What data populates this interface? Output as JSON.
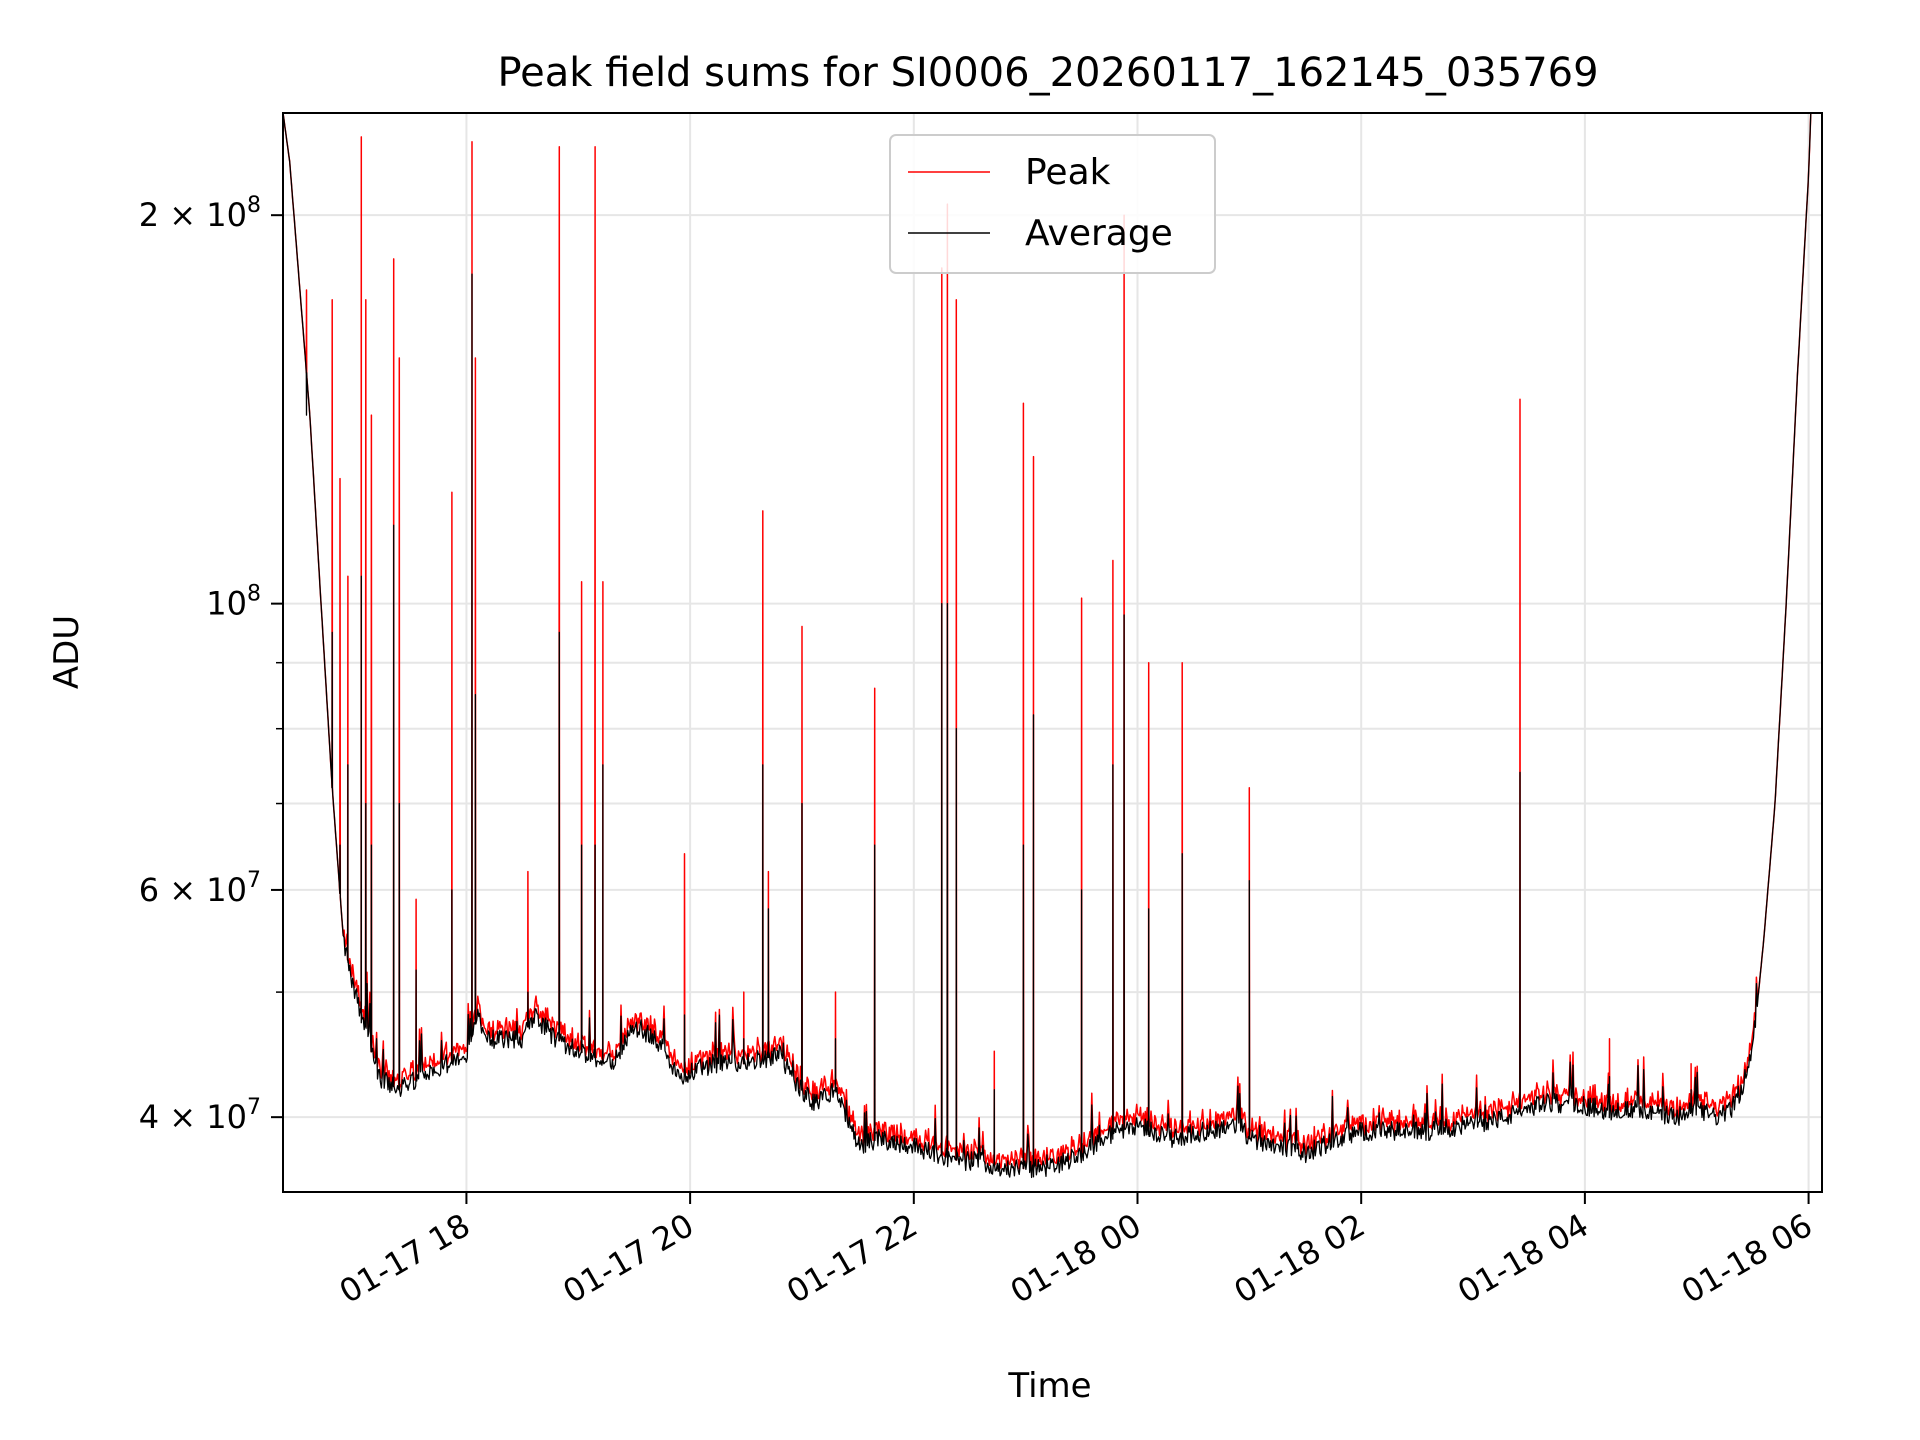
{
  "chart_data": {
    "type": "line",
    "title": "Peak field sums for SI0006_20260117_162145_035769",
    "xlabel": "Time",
    "ylabel": "ADU",
    "yscale": "log",
    "ylim": [
      35000000,
      240000000
    ],
    "xlim": [
      16.36,
      30.12
    ],
    "x_unit": "hours since 2026-01-17 00:00",
    "grid": true,
    "legend_position": "top-center",
    "x_ticks": [
      {
        "value": 18,
        "label": "01-17 18"
      },
      {
        "value": 20,
        "label": "01-17 20"
      },
      {
        "value": 22,
        "label": "01-17 22"
      },
      {
        "value": 24,
        "label": "01-18 00"
      },
      {
        "value": 26,
        "label": "01-18 02"
      },
      {
        "value": 28,
        "label": "01-18 04"
      },
      {
        "value": 30,
        "label": "01-18 06"
      }
    ],
    "y_ticks": [
      {
        "value": 40000000,
        "label": "4 × 10",
        "exp": "7"
      },
      {
        "value": 60000000,
        "label": "6 × 10",
        "exp": "7"
      },
      {
        "value": 100000000,
        "label": "10",
        "exp": "8"
      },
      {
        "value": 200000000,
        "label": "2 × 10",
        "exp": "8"
      }
    ],
    "y_minor_ticks": [
      50000000,
      70000000,
      80000000,
      90000000
    ],
    "baseline": [
      [
        16.36,
        240000000
      ],
      [
        16.42,
        220000000
      ],
      [
        16.5,
        180000000
      ],
      [
        16.6,
        140000000
      ],
      [
        16.7,
        100000000
      ],
      [
        16.8,
        72000000
      ],
      [
        16.9,
        55000000
      ],
      [
        17.0,
        50000000
      ],
      [
        17.1,
        47000000
      ],
      [
        17.2,
        43000000
      ],
      [
        17.4,
        42000000
      ],
      [
        17.6,
        43000000
      ],
      [
        17.8,
        44000000
      ],
      [
        18.0,
        44500000
      ],
      [
        18.1,
        48000000
      ],
      [
        18.2,
        46000000
      ],
      [
        18.5,
        46000000
      ],
      [
        18.6,
        48000000
      ],
      [
        18.8,
        46000000
      ],
      [
        19.0,
        45000000
      ],
      [
        19.3,
        44000000
      ],
      [
        19.5,
        47000000
      ],
      [
        19.7,
        46000000
      ],
      [
        19.9,
        43000000
      ],
      [
        20.2,
        44000000
      ],
      [
        20.5,
        44000000
      ],
      [
        20.7,
        44500000
      ],
      [
        20.8,
        45000000
      ],
      [
        20.9,
        43000000
      ],
      [
        21.1,
        41000000
      ],
      [
        21.3,
        42000000
      ],
      [
        21.5,
        38000000
      ],
      [
        21.7,
        38500000
      ],
      [
        22.0,
        38000000
      ],
      [
        22.2,
        37500000
      ],
      [
        22.4,
        37000000
      ],
      [
        22.6,
        37000000
      ],
      [
        22.8,
        36500000
      ],
      [
        23.0,
        36500000
      ],
      [
        23.2,
        36500000
      ],
      [
        23.5,
        37500000
      ],
      [
        23.8,
        39000000
      ],
      [
        24.0,
        39500000
      ],
      [
        24.3,
        38500000
      ],
      [
        24.6,
        39000000
      ],
      [
        24.9,
        39500000
      ],
      [
        25.0,
        38500000
      ],
      [
        25.3,
        38000000
      ],
      [
        25.5,
        37500000
      ],
      [
        25.8,
        38500000
      ],
      [
        26.0,
        39000000
      ],
      [
        26.3,
        39000000
      ],
      [
        26.6,
        39000000
      ],
      [
        27.0,
        39500000
      ],
      [
        27.3,
        40000000
      ],
      [
        27.6,
        41000000
      ],
      [
        27.9,
        41000000
      ],
      [
        28.2,
        40500000
      ],
      [
        28.5,
        40500000
      ],
      [
        28.8,
        40000000
      ],
      [
        29.0,
        40500000
      ],
      [
        29.2,
        40000000
      ],
      [
        29.3,
        40500000
      ],
      [
        29.4,
        42000000
      ],
      [
        29.5,
        45000000
      ],
      [
        29.6,
        55000000
      ],
      [
        29.7,
        70000000
      ],
      [
        29.8,
        100000000
      ],
      [
        29.9,
        150000000
      ],
      [
        30.0,
        215000000
      ],
      [
        30.02,
        240000000
      ]
    ],
    "spikes": [
      {
        "x": 16.57,
        "peak": 175000000,
        "avg": 140000000
      },
      {
        "x": 16.8,
        "peak": 172000000,
        "avg": 95000000
      },
      {
        "x": 16.87,
        "peak": 125000000,
        "avg": 65000000
      },
      {
        "x": 16.94,
        "peak": 105000000,
        "avg": 75000000
      },
      {
        "x": 17.06,
        "peak": 230000000,
        "avg": 105000000
      },
      {
        "x": 17.1,
        "peak": 172000000,
        "avg": 70000000
      },
      {
        "x": 17.15,
        "peak": 140000000,
        "avg": 65000000
      },
      {
        "x": 17.35,
        "peak": 185000000,
        "avg": 115000000
      },
      {
        "x": 17.4,
        "peak": 155000000,
        "avg": 70000000
      },
      {
        "x": 17.55,
        "peak": 59000000,
        "avg": 52000000
      },
      {
        "x": 17.87,
        "peak": 122000000,
        "avg": 60000000
      },
      {
        "x": 18.05,
        "peak": 228000000,
        "avg": 180000000
      },
      {
        "x": 18.08,
        "peak": 155000000,
        "avg": 85000000
      },
      {
        "x": 18.55,
        "peak": 62000000,
        "avg": 50000000
      },
      {
        "x": 18.83,
        "peak": 226000000,
        "avg": 95000000
      },
      {
        "x": 19.03,
        "peak": 104000000,
        "avg": 65000000
      },
      {
        "x": 19.15,
        "peak": 226000000,
        "avg": 65000000
      },
      {
        "x": 19.22,
        "peak": 104000000,
        "avg": 75000000
      },
      {
        "x": 19.95,
        "peak": 64000000,
        "avg": 48000000
      },
      {
        "x": 20.48,
        "peak": 50000000,
        "avg": 46000000
      },
      {
        "x": 20.65,
        "peak": 118000000,
        "avg": 75000000
      },
      {
        "x": 20.7,
        "peak": 62000000,
        "avg": 58000000
      },
      {
        "x": 21.0,
        "peak": 96000000,
        "avg": 70000000
      },
      {
        "x": 21.3,
        "peak": 50000000,
        "avg": 46000000
      },
      {
        "x": 21.65,
        "peak": 86000000,
        "avg": 65000000
      },
      {
        "x": 22.25,
        "peak": 182000000,
        "avg": 100000000
      },
      {
        "x": 22.3,
        "peak": 204000000,
        "avg": 100000000
      },
      {
        "x": 22.38,
        "peak": 172000000,
        "avg": 80000000
      },
      {
        "x": 22.72,
        "peak": 45000000,
        "avg": 42000000
      },
      {
        "x": 22.98,
        "peak": 143000000,
        "avg": 65000000
      },
      {
        "x": 23.07,
        "peak": 130000000,
        "avg": 82000000
      },
      {
        "x": 23.5,
        "peak": 101000000,
        "avg": 60000000
      },
      {
        "x": 23.78,
        "peak": 108000000,
        "avg": 75000000
      },
      {
        "x": 23.88,
        "peak": 200000000,
        "avg": 98000000
      },
      {
        "x": 24.1,
        "peak": 90000000,
        "avg": 58000000
      },
      {
        "x": 24.4,
        "peak": 90000000,
        "avg": 64000000
      },
      {
        "x": 25.0,
        "peak": 72000000,
        "avg": 61000000
      },
      {
        "x": 27.42,
        "peak": 144000000,
        "avg": 74000000
      },
      {
        "x": 28.22,
        "peak": 46000000,
        "avg": 43000000
      },
      {
        "x": 28.95,
        "peak": 44000000,
        "avg": 42000000
      }
    ],
    "series": [
      {
        "name": "Peak",
        "color": "#ff0000"
      },
      {
        "name": "Average",
        "color": "#000000"
      }
    ]
  }
}
